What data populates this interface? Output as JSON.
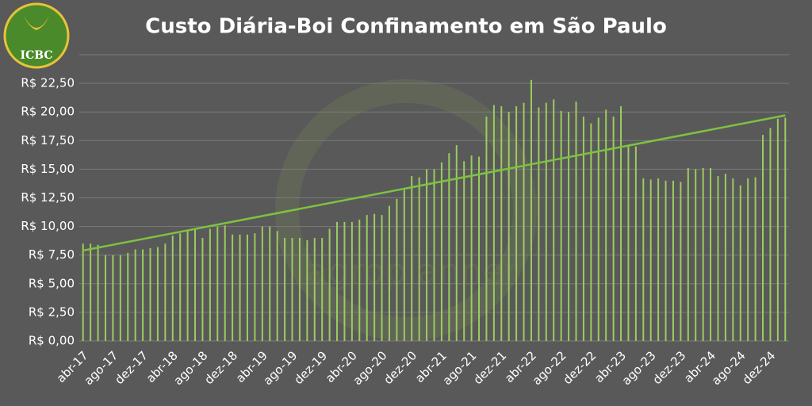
{
  "chart_data": {
    "type": "bar",
    "title": "Custo Diária-Boi Confinamento em São Paulo",
    "logo_text": "ICBC",
    "watermark": "agroplanner",
    "categories": [
      "abr-17",
      null,
      null,
      null,
      "ago-17",
      null,
      null,
      null,
      "dez-17",
      null,
      null,
      null,
      "abr-18",
      null,
      null,
      null,
      "ago-18",
      null,
      null,
      null,
      "dez-18",
      null,
      null,
      null,
      "abr-19",
      null,
      null,
      null,
      "ago-19",
      null,
      null,
      null,
      "dez-19",
      null,
      null,
      null,
      "abr-20",
      null,
      null,
      null,
      "ago-20",
      null,
      null,
      null,
      "dez-20",
      null,
      null,
      null,
      "abr-21",
      null,
      null,
      null,
      "ago-21",
      null,
      null,
      null,
      "dez-21",
      null,
      null,
      null,
      "abr-22",
      null,
      null,
      null,
      "ago-22",
      null,
      null,
      null,
      "dez-22",
      null,
      null,
      null,
      "abr-23",
      null,
      null,
      null,
      "ago-23",
      null,
      null,
      null,
      "dez-23",
      null,
      null,
      null,
      "abr-24",
      null,
      null,
      null,
      "ago-24",
      null,
      null,
      null,
      "dez-24",
      null,
      null
    ],
    "values": [
      8.5,
      8.5,
      8.4,
      7.5,
      7.5,
      7.5,
      7.7,
      8.0,
      8.0,
      8.1,
      8.2,
      8.5,
      9.2,
      9.4,
      9.6,
      9.8,
      9.0,
      9.8,
      10.0,
      10.1,
      9.3,
      9.3,
      9.3,
      9.4,
      10.0,
      10.0,
      9.6,
      9.0,
      9.0,
      9.0,
      8.8,
      9.0,
      9.0,
      9.8,
      10.4,
      10.4,
      10.4,
      10.6,
      11.0,
      11.1,
      11.0,
      11.8,
      12.4,
      13.2,
      14.4,
      14.3,
      15.0,
      15.0,
      15.6,
      16.4,
      17.1,
      15.7,
      16.2,
      16.1,
      19.6,
      20.6,
      20.5,
      20.0,
      20.5,
      20.8,
      22.8,
      20.4,
      20.8,
      21.1,
      20.1,
      20.0,
      20.9,
      19.6,
      19.0,
      19.5,
      20.2,
      19.6,
      20.5,
      17.0,
      17.0,
      14.2,
      14.1,
      14.2,
      14.0,
      14.0,
      13.9,
      15.1,
      15.0,
      15.1,
      15.1,
      14.4,
      14.6,
      14.2,
      13.6,
      14.2,
      14.3,
      18.0,
      18.6,
      19.4,
      19.5
    ],
    "color": "#9ccc5e",
    "trend": [
      7.9,
      19.7
    ],
    "trend_color": "#7dc242",
    "ylim": [
      0,
      25
    ],
    "yticks": [
      {
        "value": 0,
        "label": "R$ 0,00"
      },
      {
        "value": 2.5,
        "label": "R$ 2,50"
      },
      {
        "value": 5,
        "label": "R$ 5,00"
      },
      {
        "value": 7.5,
        "label": "R$ 7,50"
      },
      {
        "value": 10,
        "label": "R$ 10,00"
      },
      {
        "value": 12.5,
        "label": "R$ 12,50"
      },
      {
        "value": 15,
        "label": "R$ 15,00"
      },
      {
        "value": 17.5,
        "label": "R$ 17,50"
      },
      {
        "value": 20,
        "label": "R$ 20,00"
      },
      {
        "value": 22.5,
        "label": "R$ 22,50"
      }
    ],
    "grid": true
  }
}
